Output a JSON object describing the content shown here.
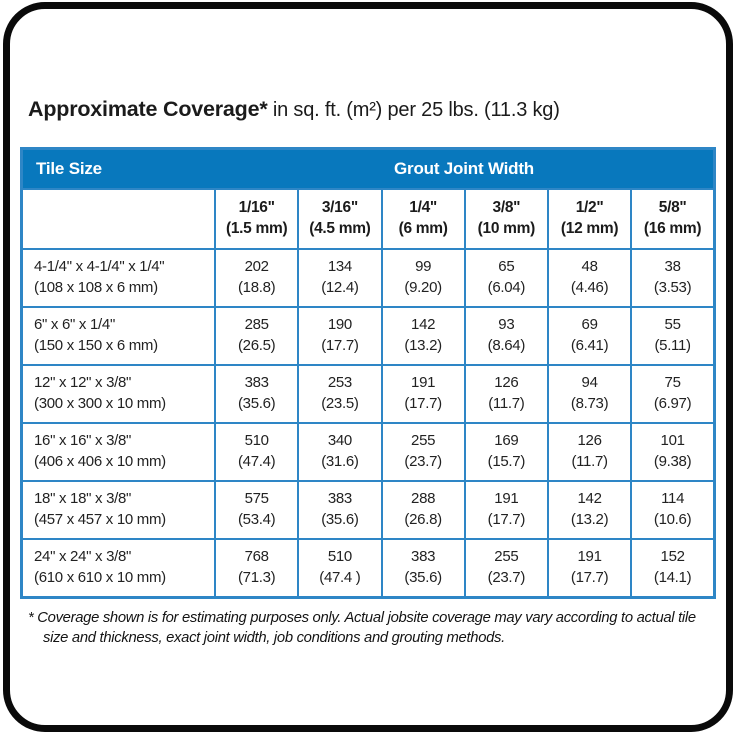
{
  "title": {
    "main": "Approximate Coverage*",
    "units": " in sq. ft. (m²) per 25 lbs. (11.3 kg)"
  },
  "table": {
    "tile_size_header": "Tile Size",
    "grout_header": "Grout Joint Width",
    "columns": [
      {
        "size": "1/16\"",
        "metric": "(1.5 mm)"
      },
      {
        "size": "3/16\"",
        "metric": "(4.5 mm)"
      },
      {
        "size": "1/4\"",
        "metric": "(6 mm)"
      },
      {
        "size": "3/8\"",
        "metric": "(10 mm)"
      },
      {
        "size": "1/2\"",
        "metric": "(12 mm)"
      },
      {
        "size": "5/8\"",
        "metric": "(16 mm)"
      }
    ],
    "rows": [
      {
        "tile": "4-1/4\" x 4-1/4\" x 1/4\"",
        "tile_metric": "(108 x 108 x 6 mm)",
        "values": [
          {
            "sqft": "202",
            "m2": "(18.8)"
          },
          {
            "sqft": "134",
            "m2": "(12.4)"
          },
          {
            "sqft": "99",
            "m2": "(9.20)"
          },
          {
            "sqft": "65",
            "m2": "(6.04)"
          },
          {
            "sqft": "48",
            "m2": "(4.46)"
          },
          {
            "sqft": "38",
            "m2": "(3.53)"
          }
        ]
      },
      {
        "tile": "6\" x 6\" x 1/4\"",
        "tile_metric": "(150 x 150 x 6 mm)",
        "values": [
          {
            "sqft": "285",
            "m2": "(26.5)"
          },
          {
            "sqft": "190",
            "m2": "(17.7)"
          },
          {
            "sqft": "142",
            "m2": "(13.2)"
          },
          {
            "sqft": "93",
            "m2": "(8.64)"
          },
          {
            "sqft": "69",
            "m2": "(6.41)"
          },
          {
            "sqft": "55",
            "m2": "(5.11)"
          }
        ]
      },
      {
        "tile": "12\" x 12\" x 3/8\"",
        "tile_metric": "(300 x 300 x 10 mm)",
        "values": [
          {
            "sqft": "383",
            "m2": "(35.6)"
          },
          {
            "sqft": "253",
            "m2": "(23.5)"
          },
          {
            "sqft": "191",
            "m2": "(17.7)"
          },
          {
            "sqft": "126",
            "m2": "(11.7)"
          },
          {
            "sqft": "94",
            "m2": "(8.73)"
          },
          {
            "sqft": "75",
            "m2": "(6.97)"
          }
        ]
      },
      {
        "tile": "16\" x 16\" x 3/8\"",
        "tile_metric": "(406 x 406 x 10 mm)",
        "values": [
          {
            "sqft": "510",
            "m2": "(47.4)"
          },
          {
            "sqft": "340",
            "m2": "(31.6)"
          },
          {
            "sqft": "255",
            "m2": "(23.7)"
          },
          {
            "sqft": "169",
            "m2": "(15.7)"
          },
          {
            "sqft": "126",
            "m2": "(11.7)"
          },
          {
            "sqft": "101",
            "m2": "(9.38)"
          }
        ]
      },
      {
        "tile": "18\" x 18\" x 3/8\"",
        "tile_metric": "(457 x 457 x 10 mm)",
        "values": [
          {
            "sqft": "575",
            "m2": "(53.4)"
          },
          {
            "sqft": "383",
            "m2": "(35.6)"
          },
          {
            "sqft": "288",
            "m2": "(26.8)"
          },
          {
            "sqft": "191",
            "m2": "(17.7)"
          },
          {
            "sqft": "142",
            "m2": "(13.2)"
          },
          {
            "sqft": "114",
            "m2": "(10.6)"
          }
        ]
      },
      {
        "tile": "24\" x 24\" x 3/8\"",
        "tile_metric": "(610 x 610 x 10 mm)",
        "values": [
          {
            "sqft": "768",
            "m2": "(71.3)"
          },
          {
            "sqft": "510",
            "m2": "(47.4 )"
          },
          {
            "sqft": "383",
            "m2": "(35.6)"
          },
          {
            "sqft": "255",
            "m2": "(23.7)"
          },
          {
            "sqft": "191",
            "m2": "(17.7)"
          },
          {
            "sqft": "152",
            "m2": "(14.1)"
          }
        ]
      }
    ]
  },
  "footnote": "* Coverage shown is for estimating purposes only. Actual jobsite coverage may vary according to actual tile size and thickness, exact joint width, job conditions and grouting methods.",
  "colors": {
    "header_blue": "#0878bd",
    "border_blue": "#2e86c6",
    "frame_black": "#0a0a0a"
  },
  "chart_data": {
    "type": "table",
    "title": "Approximate Coverage* in sq. ft. (m²) per 25 lbs. (11.3 kg)",
    "row_header": "Tile Size",
    "column_group_header": "Grout Joint Width",
    "columns": [
      "1/16\" (1.5 mm)",
      "3/16\" (4.5 mm)",
      "1/4\" (6 mm)",
      "3/8\" (10 mm)",
      "1/2\" (12 mm)",
      "5/8\" (16 mm)"
    ],
    "rows": [
      {
        "tile_size": "4-1/4\" x 4-1/4\" x 1/4\" (108 x 108 x 6 mm)",
        "sqft": [
          202,
          134,
          99,
          65,
          48,
          38
        ],
        "m2": [
          18.8,
          12.4,
          9.2,
          6.04,
          4.46,
          3.53
        ]
      },
      {
        "tile_size": "6\" x 6\" x 1/4\" (150 x 150 x 6 mm)",
        "sqft": [
          285,
          190,
          142,
          93,
          69,
          55
        ],
        "m2": [
          26.5,
          17.7,
          13.2,
          8.64,
          6.41,
          5.11
        ]
      },
      {
        "tile_size": "12\" x 12\" x 3/8\" (300 x 300 x 10 mm)",
        "sqft": [
          383,
          253,
          191,
          126,
          94,
          75
        ],
        "m2": [
          35.6,
          23.5,
          17.7,
          11.7,
          8.73,
          6.97
        ]
      },
      {
        "tile_size": "16\" x 16\" x 3/8\" (406 x 406 x 10 mm)",
        "sqft": [
          510,
          340,
          255,
          169,
          126,
          101
        ],
        "m2": [
          47.4,
          31.6,
          23.7,
          15.7,
          11.7,
          9.38
        ]
      },
      {
        "tile_size": "18\" x 18\" x 3/8\" (457 x 457 x 10 mm)",
        "sqft": [
          575,
          383,
          288,
          191,
          142,
          114
        ],
        "m2": [
          53.4,
          35.6,
          26.8,
          17.7,
          13.2,
          10.6
        ]
      },
      {
        "tile_size": "24\" x 24\" x 3/8\" (610 x 610 x 10 mm)",
        "sqft": [
          768,
          510,
          383,
          255,
          191,
          152
        ],
        "m2": [
          71.3,
          47.4,
          35.6,
          23.7,
          17.7,
          14.1
        ]
      }
    ]
  }
}
